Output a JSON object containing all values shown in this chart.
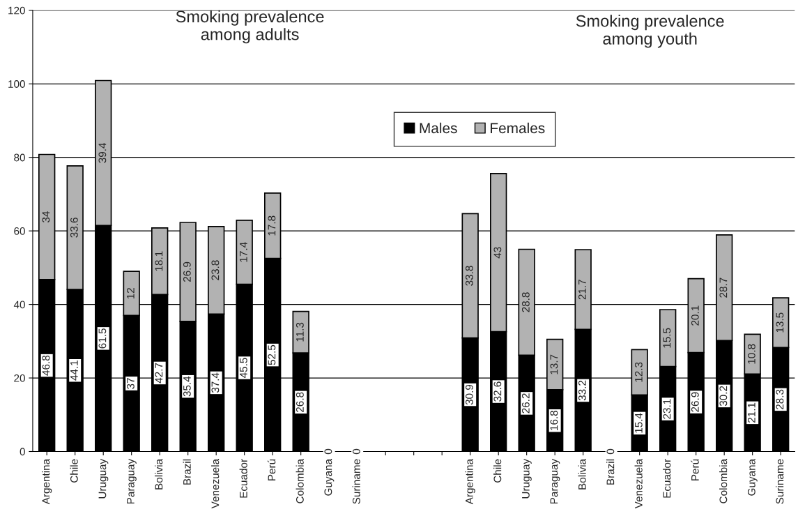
{
  "chart_data": {
    "type": "bar",
    "stacked": true,
    "categories": [
      "Argentina",
      "Chile",
      "Uruguay",
      "Paraguay",
      "Bolivia",
      "Brazil",
      "Venezuela",
      "Ecuador",
      "Perú",
      "Colombia",
      "Guyana",
      "Suriname",
      null,
      null,
      null,
      "Argentina",
      "Chile",
      "Uruguay",
      "Paraguay",
      "Bolivia",
      "Brazil",
      "Venezuela",
      "Ecuador",
      "Perú",
      "Colombia",
      "Guyana",
      "Suriname"
    ],
    "series": [
      {
        "name": "Males",
        "color": "#000000",
        "values": [
          46.8,
          44.1,
          61.5,
          37,
          42.7,
          35.4,
          37.4,
          45.5,
          52.5,
          26.8,
          0,
          0,
          null,
          null,
          null,
          30.9,
          32.6,
          26.2,
          16.8,
          33.2,
          0,
          15.4,
          23.1,
          26.9,
          30.2,
          21.1,
          28.3
        ]
      },
      {
        "name": "Females",
        "color": "#b2b2b2",
        "values": [
          34,
          33.6,
          39.4,
          12,
          18.1,
          26.9,
          23.8,
          17.4,
          17.8,
          11.3,
          null,
          null,
          null,
          null,
          null,
          33.8,
          43,
          28.8,
          13.7,
          21.7,
          null,
          12.3,
          15.5,
          20.1,
          28.7,
          10.8,
          13.5
        ]
      }
    ],
    "annotations": [
      "Smoking prevalence\namong adults",
      "Smoking prevalence\namong youth"
    ],
    "ylim": [
      0,
      120
    ],
    "yticks": [
      0,
      20,
      40,
      60,
      80,
      100,
      120
    ],
    "grid": "y",
    "legend": "top",
    "data_labels": true
  }
}
